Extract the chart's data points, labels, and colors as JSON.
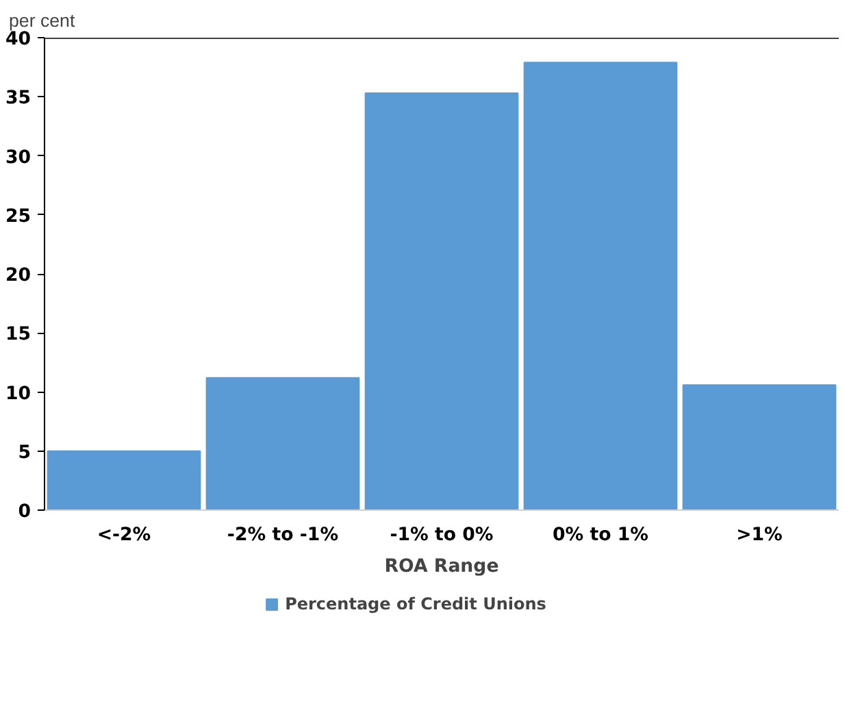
{
  "chart_data": {
    "type": "bar",
    "subtitle": "per cent",
    "xlabel": "ROA Range",
    "categories": [
      "<-2%",
      "-2% to -1%",
      "-1% to 0%",
      "0% to 1%",
      ">1%"
    ],
    "series": [
      {
        "name": "Percentage of Credit Unions",
        "color": "#5b9bd5",
        "values": [
          5.0,
          11.2,
          35.3,
          37.9,
          10.6
        ]
      }
    ],
    "ylim": [
      0,
      40
    ],
    "yticks": [
      0,
      5,
      10,
      15,
      20,
      25,
      30,
      35,
      40
    ],
    "grid": false,
    "legend": "bottom"
  }
}
